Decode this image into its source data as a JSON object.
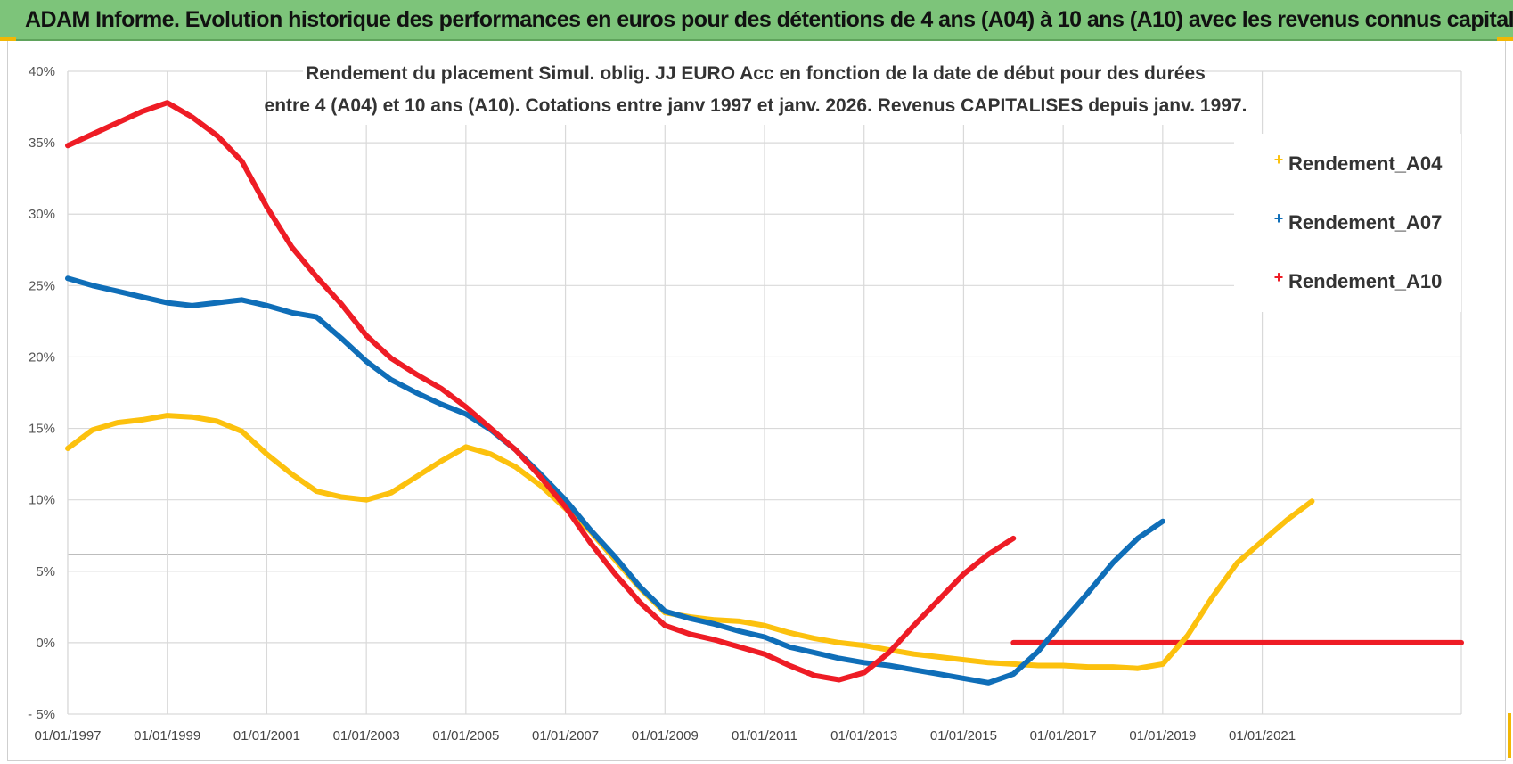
{
  "header": {
    "title": "ADAM Informe. Evolution historique des performances en euros pour des détentions de 4 ans (A04) à 10 ans (A10) avec les revenus connus capitalisés"
  },
  "chart_data": {
    "type": "line",
    "title": "Rendement du placement Simul. oblig. JJ EURO Acc en fonction de la date de début pour des durées",
    "subtitle": "entre 4 (A04) et 10 ans (A10). Cotations entre janv 1997 et janv. 2026. Revenus CAPITALISES depuis janv. 1997.",
    "xlabel": "",
    "ylabel": "",
    "x_range": [
      1997.0,
      2025.0
    ],
    "ylim": [
      -5,
      40
    ],
    "y_ticks": [
      -5,
      0,
      5,
      10,
      15,
      20,
      25,
      30,
      35,
      40
    ],
    "y_tick_labels": [
      "- 5%",
      "0%",
      "5%",
      "10%",
      "15%",
      "20%",
      "25%",
      "30%",
      "35%",
      "40%"
    ],
    "x_ticks": [
      1997,
      1999,
      2001,
      2003,
      2005,
      2007,
      2009,
      2011,
      2013,
      2015,
      2017,
      2019,
      2021
    ],
    "x_tick_labels": [
      "01/01/1997",
      "01/01/1999",
      "01/01/2001",
      "01/01/2003",
      "01/01/2005",
      "01/01/2007",
      "01/01/2009",
      "01/01/2011",
      "01/01/2013",
      "01/01/2015",
      "01/01/2017",
      "01/01/2019",
      "01/01/2021"
    ],
    "legend_position": "right",
    "grid": true,
    "series": [
      {
        "name": "Rendement_A04",
        "color": "#fcc10e",
        "points": [
          [
            1997.0,
            13.6
          ],
          [
            1997.5,
            14.9
          ],
          [
            1998.0,
            15.4
          ],
          [
            1998.5,
            15.6
          ],
          [
            1999.0,
            15.9
          ],
          [
            1999.5,
            15.8
          ],
          [
            2000.0,
            15.5
          ],
          [
            2000.5,
            14.8
          ],
          [
            2001.0,
            13.2
          ],
          [
            2001.5,
            11.8
          ],
          [
            2002.0,
            10.6
          ],
          [
            2002.5,
            10.2
          ],
          [
            2003.0,
            10.0
          ],
          [
            2003.5,
            10.5
          ],
          [
            2004.0,
            11.6
          ],
          [
            2004.5,
            12.7
          ],
          [
            2005.0,
            13.7
          ],
          [
            2005.5,
            13.2
          ],
          [
            2006.0,
            12.3
          ],
          [
            2006.5,
            11.0
          ],
          [
            2007.0,
            9.4
          ],
          [
            2007.5,
            7.8
          ],
          [
            2008.0,
            5.8
          ],
          [
            2008.5,
            3.8
          ],
          [
            2009.0,
            2.1
          ],
          [
            2009.5,
            1.8
          ],
          [
            2010.0,
            1.6
          ],
          [
            2010.5,
            1.5
          ],
          [
            2011.0,
            1.2
          ],
          [
            2011.5,
            0.7
          ],
          [
            2012.0,
            0.3
          ],
          [
            2012.5,
            0.0
          ],
          [
            2013.0,
            -0.2
          ],
          [
            2013.5,
            -0.5
          ],
          [
            2014.0,
            -0.8
          ],
          [
            2014.5,
            -1.0
          ],
          [
            2015.0,
            -1.2
          ],
          [
            2015.5,
            -1.4
          ],
          [
            2016.0,
            -1.5
          ],
          [
            2016.5,
            -1.6
          ],
          [
            2017.0,
            -1.6
          ],
          [
            2017.5,
            -1.7
          ],
          [
            2018.0,
            -1.7
          ],
          [
            2018.5,
            -1.8
          ],
          [
            2019.0,
            -1.5
          ],
          [
            2019.5,
            0.5
          ],
          [
            2020.0,
            3.2
          ],
          [
            2020.5,
            5.6
          ],
          [
            2021.0,
            7.1
          ],
          [
            2021.5,
            8.6
          ],
          [
            2022.0,
            9.9
          ]
        ]
      },
      {
        "name": "Rendement_A07",
        "color": "#0f6eb8",
        "points": [
          [
            1997.0,
            25.5
          ],
          [
            1997.5,
            25.0
          ],
          [
            1998.0,
            24.6
          ],
          [
            1998.5,
            24.2
          ],
          [
            1999.0,
            23.8
          ],
          [
            1999.5,
            23.6
          ],
          [
            2000.0,
            23.8
          ],
          [
            2000.5,
            24.0
          ],
          [
            2001.0,
            23.6
          ],
          [
            2001.5,
            23.1
          ],
          [
            2002.0,
            22.8
          ],
          [
            2002.5,
            21.3
          ],
          [
            2003.0,
            19.7
          ],
          [
            2003.5,
            18.4
          ],
          [
            2004.0,
            17.5
          ],
          [
            2004.5,
            16.7
          ],
          [
            2005.0,
            16.0
          ],
          [
            2005.5,
            14.9
          ],
          [
            2006.0,
            13.5
          ],
          [
            2006.5,
            11.8
          ],
          [
            2007.0,
            10.0
          ],
          [
            2007.5,
            7.9
          ],
          [
            2008.0,
            6.0
          ],
          [
            2008.5,
            3.9
          ],
          [
            2009.0,
            2.2
          ],
          [
            2009.5,
            1.7
          ],
          [
            2010.0,
            1.3
          ],
          [
            2010.5,
            0.8
          ],
          [
            2011.0,
            0.4
          ],
          [
            2011.5,
            -0.3
          ],
          [
            2012.0,
            -0.7
          ],
          [
            2012.5,
            -1.1
          ],
          [
            2013.0,
            -1.4
          ],
          [
            2013.5,
            -1.6
          ],
          [
            2014.0,
            -1.9
          ],
          [
            2014.5,
            -2.2
          ],
          [
            2015.0,
            -2.5
          ],
          [
            2015.5,
            -2.8
          ],
          [
            2016.0,
            -2.2
          ],
          [
            2016.5,
            -0.6
          ],
          [
            2017.0,
            1.5
          ],
          [
            2017.5,
            3.5
          ],
          [
            2018.0,
            5.6
          ],
          [
            2018.5,
            7.3
          ],
          [
            2019.0,
            8.5
          ]
        ]
      },
      {
        "name": "Rendement_A10",
        "color": "#ee1c25",
        "points": [
          [
            1997.0,
            34.8
          ],
          [
            1997.5,
            35.6
          ],
          [
            1998.0,
            36.4
          ],
          [
            1998.5,
            37.2
          ],
          [
            1999.0,
            37.8
          ],
          [
            1999.5,
            36.8
          ],
          [
            2000.0,
            35.5
          ],
          [
            2000.5,
            33.7
          ],
          [
            2001.0,
            30.5
          ],
          [
            2001.5,
            27.7
          ],
          [
            2002.0,
            25.6
          ],
          [
            2002.5,
            23.7
          ],
          [
            2003.0,
            21.5
          ],
          [
            2003.5,
            19.9
          ],
          [
            2004.0,
            18.8
          ],
          [
            2004.5,
            17.8
          ],
          [
            2005.0,
            16.5
          ],
          [
            2005.5,
            15.0
          ],
          [
            2006.0,
            13.5
          ],
          [
            2006.5,
            11.6
          ],
          [
            2007.0,
            9.5
          ],
          [
            2007.5,
            7.0
          ],
          [
            2008.0,
            4.8
          ],
          [
            2008.5,
            2.8
          ],
          [
            2009.0,
            1.2
          ],
          [
            2009.5,
            0.6
          ],
          [
            2010.0,
            0.2
          ],
          [
            2010.5,
            -0.3
          ],
          [
            2011.0,
            -0.8
          ],
          [
            2011.5,
            -1.6
          ],
          [
            2012.0,
            -2.3
          ],
          [
            2012.5,
            -2.6
          ],
          [
            2013.0,
            -2.1
          ],
          [
            2013.5,
            -0.7
          ],
          [
            2014.0,
            1.2
          ],
          [
            2014.5,
            3.0
          ],
          [
            2015.0,
            4.8
          ],
          [
            2015.5,
            6.2
          ],
          [
            2016.0,
            7.3
          ]
        ]
      },
      {
        "name": "Rendement_A10 (flat)",
        "color": "#ee1c25",
        "points": [
          [
            2016.0,
            0.0
          ],
          [
            2025.0,
            0.0
          ]
        ]
      }
    ]
  },
  "legend": {
    "items": [
      {
        "label": "Rendement_A04",
        "color": "#fcc10e",
        "marker": "+"
      },
      {
        "label": "Rendement_A07",
        "color": "#0f6eb8",
        "marker": "+"
      },
      {
        "label": "Rendement_A10",
        "color": "#ee1c25",
        "marker": "+"
      }
    ]
  },
  "colors": {
    "banner": "#7dc47a",
    "corner_accent": "#f2b705",
    "grid": "#d9d9d9"
  }
}
